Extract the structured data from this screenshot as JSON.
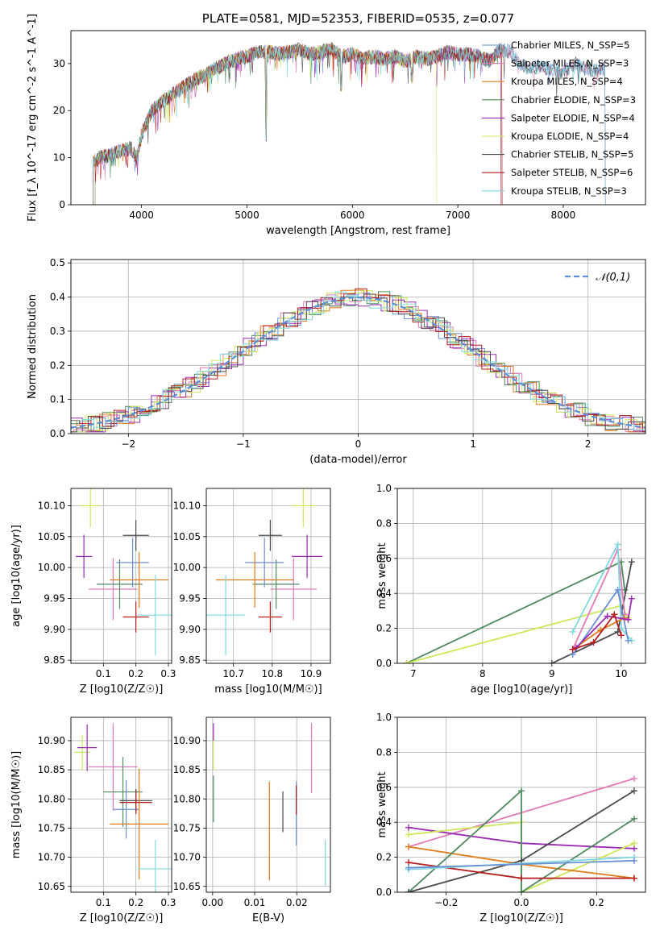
{
  "chart_data": [
    {
      "type": "line",
      "title": "PLATE=0581, MJD=52353, FIBERID=0535, z=0.077",
      "xlabel": "wavelength [Angstrom, rest frame]",
      "ylabel": "Flux [f_λ 10^-17 erg cm^-2 s^-1 A^-1]",
      "xlim": [
        3330,
        8780
      ],
      "ylim": [
        0,
        37
      ],
      "xticks": [
        "4000",
        "5000",
        "6000",
        "7000",
        "8000"
      ],
      "yticks": [
        "0",
        "10",
        "20",
        "30"
      ],
      "grid": false,
      "legend_position": "right",
      "spectrum_outline": {
        "x": [
          3540,
          3600,
          3700,
          3800,
          3900,
          3960,
          4000,
          4100,
          4200,
          4300,
          4400,
          4500,
          4600,
          4700,
          4800,
          4900,
          5000,
          5100,
          5200,
          5300,
          5400,
          5500,
          5600,
          5700,
          5800,
          5900,
          6000,
          6100,
          6200,
          6300,
          6400,
          6500,
          6600,
          6700,
          6800,
          6900,
          7000,
          7100,
          7200,
          7300,
          7400,
          7500,
          7600,
          7700,
          7800,
          7900,
          8000,
          8100,
          8200,
          8300,
          8400
        ],
        "y": [
          9,
          10,
          10.5,
          11.5,
          12,
          10,
          15,
          20,
          22,
          23.5,
          25,
          26.5,
          27.5,
          29,
          30,
          31,
          31.5,
          32.5,
          32.5,
          32,
          32.5,
          33,
          32,
          32.5,
          33,
          31.5,
          32,
          31,
          31.5,
          31,
          31.5,
          30.5,
          31.5,
          31,
          31.5,
          32.5,
          32,
          32,
          31.5,
          30.5,
          33,
          32.5,
          29.5,
          29,
          29.5,
          28.5,
          28,
          30,
          29,
          28.5,
          29
        ]
      },
      "series": [
        {
          "name": "Chabrier MILES, N_SSP=5",
          "color": "#6a8fd6",
          "start": 3540,
          "end": 8400
        },
        {
          "name": "Salpeter MILES, N_SSP=3",
          "color": "#e37ab8",
          "start": 3540,
          "end": 8400
        },
        {
          "name": "Kroupa MILES, N_SSP=4",
          "color": "#e07b1a",
          "start": 3540,
          "end": 7420
        },
        {
          "name": "Chabrier ELODIE, N_SSP=3",
          "color": "#4f8a60",
          "start": 3560,
          "end": 7410
        },
        {
          "name": "Salpeter ELODIE, N_SSP=4",
          "color": "#9b2bb3",
          "start": 3560,
          "end": 7410
        },
        {
          "name": "Kroupa ELODIE, N_SSP=4",
          "color": "#cce85a",
          "start": 3560,
          "end": 6800
        },
        {
          "name": "Chabrier STELIB, N_SSP=5",
          "color": "#4a4a4a",
          "start": 3540,
          "end": 8400
        },
        {
          "name": "Salpeter STELIB, N_SSP=6",
          "color": "#b51d1d",
          "start": 3540,
          "end": 7420
        },
        {
          "name": "Kroupa STELIB, N_SSP=3",
          "color": "#7fd9de",
          "start": 3540,
          "end": 8400
        }
      ]
    },
    {
      "type": "line",
      "xlabel": "(data-model)/error",
      "ylabel": "Normed distribution",
      "xlim": [
        -2.5,
        2.5
      ],
      "ylim": [
        0,
        0.51
      ],
      "xticks": [
        "−2",
        "−1",
        "0",
        "1",
        "2"
      ],
      "yticks": [
        "0.0",
        "0.1",
        "0.2",
        "0.3",
        "0.4",
        "0.5"
      ],
      "grid": true,
      "legend_position": "top-right",
      "reference": {
        "name": "𝒩(0,1)",
        "color": "#5b8fd6"
      },
      "histogram_bin_width": 0.1
    },
    {
      "type": "scatter",
      "xlabel": "Z [log10(Z/Z☉)]",
      "ylabel": "age [log10(age/yr)]",
      "xlim": [
        0.0,
        0.31
      ],
      "ylim": [
        9.845,
        10.128
      ],
      "xticks": [
        "0.1",
        "0.2",
        "0.3"
      ],
      "yticks": [
        "9.85",
        "9.90",
        "9.95",
        "10.00",
        "10.05",
        "10.10"
      ],
      "grid": true,
      "points": [
        {
          "color": "#cce85a",
          "x": 0.06,
          "y": 10.1,
          "xerr": 0.03,
          "yerr": 0.035
        },
        {
          "color": "#9b2bb3",
          "x": 0.04,
          "y": 10.018,
          "xerr": 0.025,
          "yerr": 0.035
        },
        {
          "color": "#e37ab8",
          "x": 0.13,
          "y": 9.965,
          "xerr": 0.075,
          "yerr": 0.05
        },
        {
          "color": "#4f8a60",
          "x": 0.15,
          "y": 9.973,
          "xerr": 0.07,
          "yerr": 0.04
        },
        {
          "color": "#6a8fd6",
          "x": 0.19,
          "y": 10.008,
          "xerr": 0.05,
          "yerr": 0.04
        },
        {
          "color": "#4a4a4a",
          "x": 0.2,
          "y": 10.052,
          "xerr": 0.04,
          "yerr": 0.025
        },
        {
          "color": "#e07b1a",
          "x": 0.21,
          "y": 9.98,
          "xerr": 0.09,
          "yerr": 0.045
        },
        {
          "color": "#b51d1d",
          "x": 0.2,
          "y": 9.92,
          "xerr": 0.04,
          "yerr": 0.025
        },
        {
          "color": "#7fd9de",
          "x": 0.26,
          "y": 9.923,
          "xerr": 0.055,
          "yerr": 0.065
        }
      ]
    },
    {
      "type": "scatter",
      "xlabel": "mass [log10(M/M☉)]",
      "xlim": [
        10.63,
        10.95
      ],
      "ylim": [
        9.845,
        10.128
      ],
      "xticks": [
        "10.7",
        "10.8",
        "10.9"
      ],
      "yticks": [
        "9.85",
        "9.90",
        "9.95",
        "10.00",
        "10.05",
        "10.10"
      ],
      "grid": true,
      "points": [
        {
          "color": "#cce85a",
          "x": 10.88,
          "y": 10.1,
          "xerr": 0.03,
          "yerr": 0.035
        },
        {
          "color": "#9b2bb3",
          "x": 10.89,
          "y": 10.018,
          "xerr": 0.04,
          "yerr": 0.035
        },
        {
          "color": "#e37ab8",
          "x": 10.855,
          "y": 9.965,
          "xerr": 0.06,
          "yerr": 0.05
        },
        {
          "color": "#4f8a60",
          "x": 10.81,
          "y": 9.973,
          "xerr": 0.06,
          "yerr": 0.04
        },
        {
          "color": "#6a8fd6",
          "x": 10.78,
          "y": 10.008,
          "xerr": 0.05,
          "yerr": 0.04
        },
        {
          "color": "#4a4a4a",
          "x": 10.795,
          "y": 10.052,
          "xerr": 0.03,
          "yerr": 0.025
        },
        {
          "color": "#e07b1a",
          "x": 10.755,
          "y": 9.98,
          "xerr": 0.1,
          "yerr": 0.045
        },
        {
          "color": "#b51d1d",
          "x": 10.795,
          "y": 9.92,
          "xerr": 0.03,
          "yerr": 0.025
        },
        {
          "color": "#7fd9de",
          "x": 10.68,
          "y": 9.923,
          "xerr": 0.05,
          "yerr": 0.065
        }
      ]
    },
    {
      "type": "line",
      "xlabel": "age [log10(age/yr)]",
      "ylabel": "mass weight",
      "xlim": [
        6.77,
        10.35
      ],
      "ylim": [
        0,
        1.0
      ],
      "xticks": [
        "7",
        "8",
        "9",
        "10"
      ],
      "yticks": [
        "0.0",
        "0.2",
        "0.4",
        "0.6",
        "0.8",
        "1.0"
      ],
      "grid": true,
      "series": [
        {
          "color": "#4f8a60",
          "x": [
            6.9,
            10.0,
            10.05
          ],
          "y": [
            0.0,
            0.58,
            0.42
          ]
        },
        {
          "color": "#cce85a",
          "x": [
            6.9,
            10.0,
            10.1
          ],
          "y": [
            0.0,
            0.33,
            0.26
          ]
        },
        {
          "color": "#4a4a4a",
          "x": [
            9.0,
            9.95,
            10.15
          ],
          "y": [
            0.0,
            0.18,
            0.58
          ]
        },
        {
          "color": "#e37ab8",
          "x": [
            9.3,
            9.95,
            10.05
          ],
          "y": [
            0.08,
            0.65,
            0.28
          ]
        },
        {
          "color": "#7fd9de",
          "x": [
            9.3,
            9.95,
            10.0,
            10.15
          ],
          "y": [
            0.18,
            0.68,
            0.2,
            0.13
          ]
        },
        {
          "color": "#6a8fd6",
          "x": [
            9.3,
            9.95,
            10.1
          ],
          "y": [
            0.05,
            0.42,
            0.13
          ]
        },
        {
          "color": "#e07b1a",
          "x": [
            9.3,
            9.7,
            10.05
          ],
          "y": [
            0.08,
            0.19,
            0.26
          ]
        },
        {
          "color": "#9b2bb3",
          "x": [
            9.35,
            9.8,
            10.1,
            10.15
          ],
          "y": [
            0.09,
            0.27,
            0.25,
            0.37
          ]
        },
        {
          "color": "#b51d1d",
          "x": [
            9.3,
            9.6,
            9.9,
            10.0
          ],
          "y": [
            0.08,
            0.12,
            0.28,
            0.16
          ]
        }
      ]
    },
    {
      "type": "scatter",
      "xlabel": "Z [log10(Z/Z☉)]",
      "ylabel": "mass [log10(M/M☉)]",
      "xlim": [
        0.0,
        0.31
      ],
      "ylim": [
        10.64,
        10.94
      ],
      "xticks": [
        "0.1",
        "0.2",
        "0.3"
      ],
      "yticks": [
        "10.65",
        "10.70",
        "10.75",
        "10.80",
        "10.85",
        "10.90"
      ],
      "grid": true,
      "points": [
        {
          "color": "#cce85a",
          "x": 0.035,
          "y": 10.88,
          "xerr": 0.025,
          "yerr": 0.03
        },
        {
          "color": "#9b2bb3",
          "x": 0.05,
          "y": 10.888,
          "xerr": 0.03,
          "yerr": 0.04
        },
        {
          "color": "#e37ab8",
          "x": 0.13,
          "y": 10.855,
          "xerr": 0.075,
          "yerr": 0.075
        },
        {
          "color": "#4f8a60",
          "x": 0.16,
          "y": 10.812,
          "xerr": 0.06,
          "yerr": 0.06
        },
        {
          "color": "#6a8fd6",
          "x": 0.17,
          "y": 10.782,
          "xerr": 0.04,
          "yerr": 0.05
        },
        {
          "color": "#4a4a4a",
          "x": 0.2,
          "y": 10.797,
          "xerr": 0.05,
          "yerr": 0.02
        },
        {
          "color": "#e07b1a",
          "x": 0.21,
          "y": 10.757,
          "xerr": 0.09,
          "yerr": 0.095
        },
        {
          "color": "#b51d1d",
          "x": 0.2,
          "y": 10.794,
          "xerr": 0.05,
          "yerr": 0.02
        },
        {
          "color": "#7fd9de",
          "x": 0.26,
          "y": 10.68,
          "xerr": 0.055,
          "yerr": 0.05
        }
      ]
    },
    {
      "type": "scatter",
      "xlabel": "E(B-V)",
      "xlim": [
        -0.0015,
        0.028
      ],
      "ylim": [
        10.64,
        10.94
      ],
      "xticks": [
        "0.00",
        "0.01",
        "0.02"
      ],
      "yticks": [
        "10.65",
        "10.70",
        "10.75",
        "10.80",
        "10.85",
        "10.90"
      ],
      "grid": true,
      "points": [
        {
          "color": "#cce85a",
          "x": 0.0002,
          "y": 10.88,
          "yerr": 0.03
        },
        {
          "color": "#9b2bb3",
          "x": 0.0002,
          "y": 10.915,
          "yerr": 0.015
        },
        {
          "color": "#4f8a60",
          "x": 0.0002,
          "y": 10.8,
          "yerr": 0.04
        },
        {
          "color": "#e07b1a",
          "x": 0.0135,
          "y": 10.745,
          "yerr": 0.085
        },
        {
          "color": "#4a4a4a",
          "x": 0.0167,
          "y": 10.778,
          "yerr": 0.035
        },
        {
          "color": "#6a8fd6",
          "x": 0.0199,
          "y": 10.775,
          "yerr": 0.055
        },
        {
          "color": "#b51d1d",
          "x": 0.0199,
          "y": 10.798,
          "yerr": 0.025
        },
        {
          "color": "#e37ab8",
          "x": 0.0235,
          "y": 10.87,
          "yerr": 0.06
        },
        {
          "color": "#7fd9de",
          "x": 0.0268,
          "y": 10.69,
          "yerr": 0.04
        }
      ]
    },
    {
      "type": "line",
      "xlabel": "Z [log10(Z/Z☉)]",
      "ylabel": "mass weight",
      "xlim": [
        -0.33,
        0.33
      ],
      "ylim": [
        0,
        1.0
      ],
      "xticks": [
        "−0.2",
        "0.0",
        "0.2"
      ],
      "yticks": [
        "0.0",
        "0.2",
        "0.4",
        "0.6",
        "0.8",
        "1.0"
      ],
      "grid": true,
      "series": [
        {
          "color": "#e37ab8",
          "x": [
            -0.3,
            0.3
          ],
          "y": [
            0.26,
            0.65
          ]
        },
        {
          "color": "#9b2bb3",
          "x": [
            -0.3,
            0.0,
            0.3
          ],
          "y": [
            0.37,
            0.28,
            0.25
          ]
        },
        {
          "color": "#cce85a",
          "x": [
            -0.3,
            0.0,
            0.0,
            0.3
          ],
          "y": [
            0.33,
            0.4,
            0.0,
            0.28
          ]
        },
        {
          "color": "#e07b1a",
          "x": [
            -0.3,
            0.0,
            0.3
          ],
          "y": [
            0.26,
            0.16,
            0.08
          ]
        },
        {
          "color": "#4f8a60",
          "x": [
            -0.3,
            0.0,
            0.0,
            0.3
          ],
          "y": [
            0.0,
            0.58,
            0.0,
            0.42
          ]
        },
        {
          "color": "#4a4a4a",
          "x": [
            -0.3,
            0.0,
            0.3
          ],
          "y": [
            0.0,
            0.18,
            0.58
          ]
        },
        {
          "color": "#b51d1d",
          "x": [
            -0.3,
            0.0,
            0.3
          ],
          "y": [
            0.17,
            0.08,
            0.08
          ]
        },
        {
          "color": "#7fd9de",
          "x": [
            -0.3,
            0.3
          ],
          "y": [
            0.13,
            0.2
          ]
        },
        {
          "color": "#6a8fd6",
          "x": [
            -0.3,
            0.3
          ],
          "y": [
            0.14,
            0.18
          ]
        }
      ]
    }
  ]
}
